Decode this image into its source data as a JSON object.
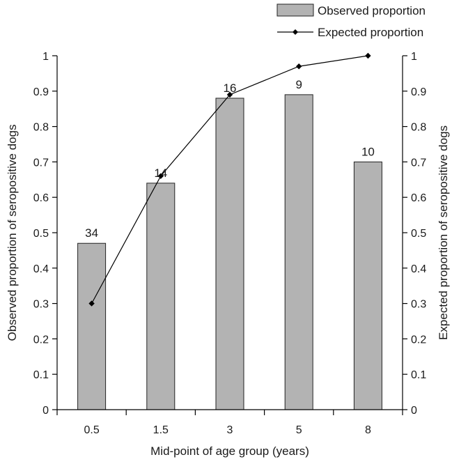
{
  "chart_data": {
    "type": "bar",
    "categories": [
      "0.5",
      "1.5",
      "3",
      "5",
      "8"
    ],
    "series": [
      {
        "name": "Observed proportion",
        "type": "bar",
        "axis": "left",
        "values": [
          0.47,
          0.64,
          0.88,
          0.89,
          0.7
        ],
        "data_labels": [
          "34",
          "14",
          "16",
          "9",
          "10"
        ],
        "color": "#b3b3b3"
      },
      {
        "name": "Expected proportion",
        "type": "line",
        "axis": "right",
        "values": [
          0.3,
          0.66,
          0.89,
          0.97,
          1.0
        ],
        "color": "#000000",
        "marker": "diamond"
      }
    ],
    "xlabel": "Mid-point of age group (years)",
    "ylabel": "Observed proportion of seropositive dogs",
    "y2label": "Expected proportion of seropositive dogs",
    "ylim": [
      0,
      1
    ],
    "y2lim": [
      0,
      1
    ],
    "yticks": [
      "0",
      "0.1",
      "0.2",
      "0.3",
      "0.4",
      "0.5",
      "0.6",
      "0.7",
      "0.8",
      "0.9",
      "1"
    ],
    "y2ticks": [
      "0",
      "0.1",
      "0.2",
      "0.3",
      "0.4",
      "0.5",
      "0.6",
      "0.7",
      "0.8",
      "0.9",
      "1"
    ],
    "grid": false,
    "legend_position": "top-right"
  }
}
